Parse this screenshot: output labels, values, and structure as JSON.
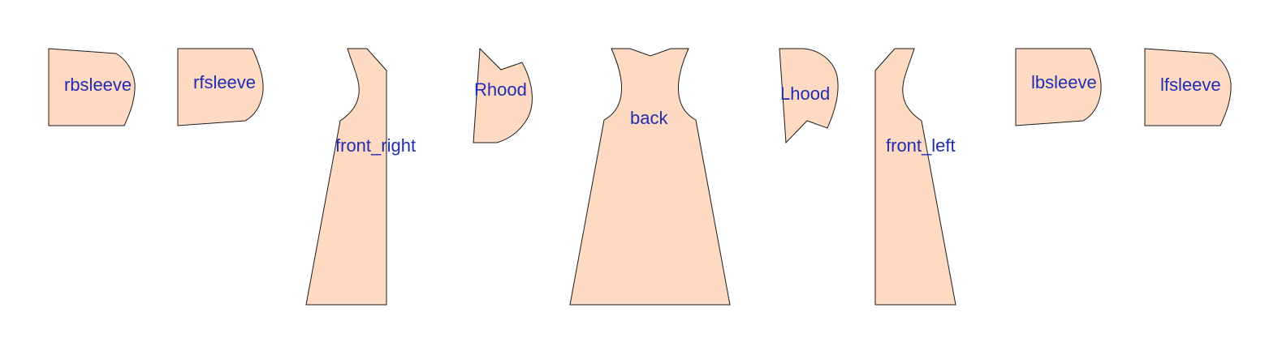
{
  "colors": {
    "piece_fill": "#FFDAC2",
    "piece_stroke": "#1A1A1A",
    "label": "#1E2DB4",
    "background": "#FFFFFF"
  },
  "pieces": [
    {
      "id": "rbsleeve",
      "label": "rbsleeve"
    },
    {
      "id": "rfsleeve",
      "label": "rfsleeve"
    },
    {
      "id": "front-right",
      "label": "front_right"
    },
    {
      "id": "rhood",
      "label": "Rhood"
    },
    {
      "id": "back",
      "label": "back"
    },
    {
      "id": "lhood",
      "label": "Lhood"
    },
    {
      "id": "front-left",
      "label": "front_left"
    },
    {
      "id": "lbsleeve",
      "label": "lbsleeve"
    },
    {
      "id": "lfsleeve",
      "label": "lfsleeve"
    }
  ]
}
